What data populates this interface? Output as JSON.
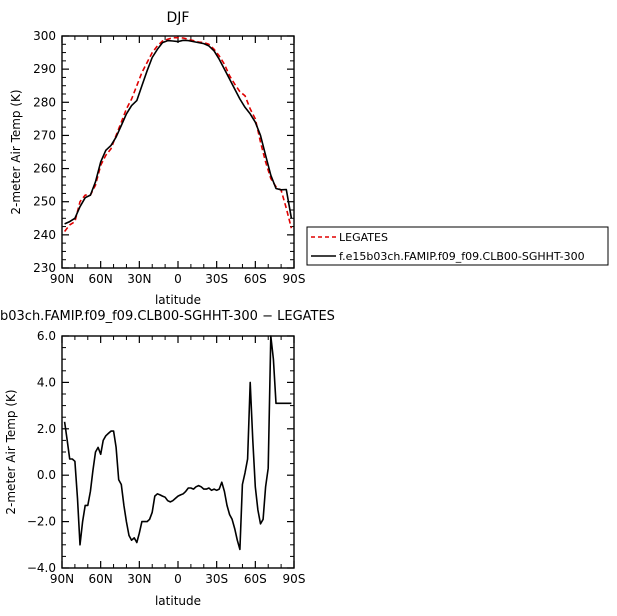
{
  "chart_data": [
    {
      "type": "line",
      "title": "DJF",
      "xlabel": "latitude",
      "ylabel": "2-meter Air Temp (K)",
      "xlim": [
        90,
        -90
      ],
      "ylim": [
        230,
        300
      ],
      "xticks": [
        90,
        60,
        30,
        0,
        -30,
        -60,
        -90
      ],
      "xtick_labels": [
        "90N",
        "60N",
        "30N",
        "0",
        "30S",
        "60S",
        "90S"
      ],
      "yticks": [
        230,
        240,
        250,
        260,
        270,
        280,
        290,
        300
      ],
      "ytick_labels": [
        "230",
        "240",
        "250",
        "260",
        "270",
        "280",
        "290",
        "300"
      ],
      "legend_position": "right",
      "series": [
        {
          "name": "LEGATES",
          "color": "#e00000",
          "dash": "dashed",
          "x": [
            88,
            84,
            80,
            76,
            72,
            68,
            64,
            60,
            56,
            52,
            48,
            44,
            40,
            36,
            32,
            28,
            24,
            20,
            16,
            12,
            8,
            4,
            0,
            -4,
            -8,
            -12,
            -16,
            -20,
            -24,
            -28,
            -32,
            -36,
            -40,
            -44,
            -48,
            -52,
            -56,
            -60,
            -64,
            -68,
            -72,
            -76,
            -80,
            -84,
            -88
          ],
          "y": [
            241,
            243,
            244,
            250,
            252,
            252,
            255,
            261,
            264,
            266,
            270,
            274,
            278,
            281,
            285,
            289,
            292,
            295,
            297,
            298.5,
            299,
            299.5,
            299.5,
            299.4,
            299,
            298.6,
            298.2,
            298,
            297.5,
            296,
            294,
            291.5,
            288,
            285.5,
            283.2,
            282,
            278,
            275,
            268,
            262,
            257,
            254.5,
            253.5,
            248,
            242
          ]
        },
        {
          "name": "f.e15b03ch.FAMIP.f09_f09.CLB00-SGHHT-300",
          "color": "#000000",
          "dash": "solid",
          "x": [
            88,
            84,
            80,
            76,
            72,
            68,
            64,
            60,
            56,
            52,
            48,
            44,
            40,
            36,
            32,
            28,
            24,
            20,
            16,
            12,
            8,
            4,
            0,
            -4,
            -8,
            -12,
            -16,
            -20,
            -24,
            -28,
            -32,
            -36,
            -40,
            -44,
            -48,
            -52,
            -56,
            -60,
            -64,
            -68,
            -72,
            -76,
            -80,
            -84,
            -88
          ],
          "y": [
            243.3,
            244,
            245,
            248.5,
            251.2,
            252,
            256,
            262,
            265.5,
            267,
            269.5,
            273,
            276.5,
            279,
            280.5,
            285,
            289.5,
            293.5,
            296,
            298,
            298.6,
            298.5,
            298.3,
            298.7,
            298.6,
            298.3,
            298,
            297.7,
            297,
            295.5,
            293,
            290,
            287,
            284,
            281,
            278.5,
            276.5,
            274,
            270,
            264,
            258,
            254,
            253.6,
            253.7,
            245
          ]
        }
      ]
    },
    {
      "type": "line",
      "title": "b03ch.FAMIP.f09_f09.CLB00-SGHHT-300 − LEGATES",
      "xlabel": "latitude",
      "ylabel": "2-meter Air Temp (K)",
      "xlim": [
        90,
        -90
      ],
      "ylim": [
        -4.0,
        6.0
      ],
      "xticks": [
        90,
        60,
        30,
        0,
        -30,
        -60,
        -90
      ],
      "xtick_labels": [
        "90N",
        "60N",
        "30N",
        "0",
        "30S",
        "60S",
        "90S"
      ],
      "yticks": [
        -4,
        -2,
        0,
        2,
        4,
        6
      ],
      "ytick_labels": [
        "−4.0",
        "−2.0",
        "0.0",
        "2.0",
        "4.0",
        "6.0"
      ],
      "series": [
        {
          "color": "#000000",
          "dash": "solid",
          "x": [
            88,
            86,
            84,
            82,
            80,
            78,
            76,
            74,
            72,
            70,
            68,
            66,
            64,
            62,
            60,
            58,
            56,
            54,
            52,
            50,
            48,
            46,
            44,
            42,
            40,
            38,
            36,
            34,
            32,
            30,
            28,
            26,
            24,
            22,
            20,
            18,
            16,
            14,
            12,
            10,
            8,
            6,
            4,
            2,
            0,
            -2,
            -4,
            -6,
            -8,
            -10,
            -12,
            -14,
            -16,
            -18,
            -20,
            -22,
            -24,
            -26,
            -28,
            -30,
            -32,
            -34,
            -36,
            -38,
            -40,
            -42,
            -44,
            -46,
            -48,
            -50,
            -52,
            -54,
            -56,
            -58,
            -60,
            -62,
            -64,
            -66,
            -68,
            -70,
            -72,
            -74,
            -76,
            -78,
            -80,
            -82,
            -84,
            -86,
            -88
          ],
          "y": [
            2.3,
            1.5,
            0.7,
            0.7,
            0.6,
            -1.0,
            -3.0,
            -2.0,
            -1.3,
            -1.3,
            -0.7,
            0.2,
            1.0,
            1.2,
            0.9,
            1.5,
            1.7,
            1.8,
            1.9,
            1.9,
            1.2,
            -0.2,
            -0.4,
            -1.3,
            -2.0,
            -2.6,
            -2.8,
            -2.7,
            -2.9,
            -2.5,
            -2.0,
            -2.0,
            -2.0,
            -1.9,
            -1.6,
            -0.9,
            -0.8,
            -0.85,
            -0.9,
            -0.95,
            -1.1,
            -1.15,
            -1.1,
            -1.0,
            -0.9,
            -0.85,
            -0.8,
            -0.7,
            -0.55,
            -0.55,
            -0.6,
            -0.5,
            -0.45,
            -0.5,
            -0.6,
            -0.6,
            -0.55,
            -0.65,
            -0.6,
            -0.65,
            -0.6,
            -0.3,
            -0.7,
            -1.3,
            -1.7,
            -1.9,
            -2.3,
            -2.8,
            -3.2,
            -0.4,
            0.1,
            0.7,
            4.0,
            1.5,
            -0.5,
            -1.5,
            -2.1,
            -1.9,
            -0.5,
            0.3,
            6.0,
            5.0,
            3.1,
            3.1,
            3.1,
            3.1,
            3.1,
            3.1,
            3.1
          ]
        }
      ]
    }
  ]
}
